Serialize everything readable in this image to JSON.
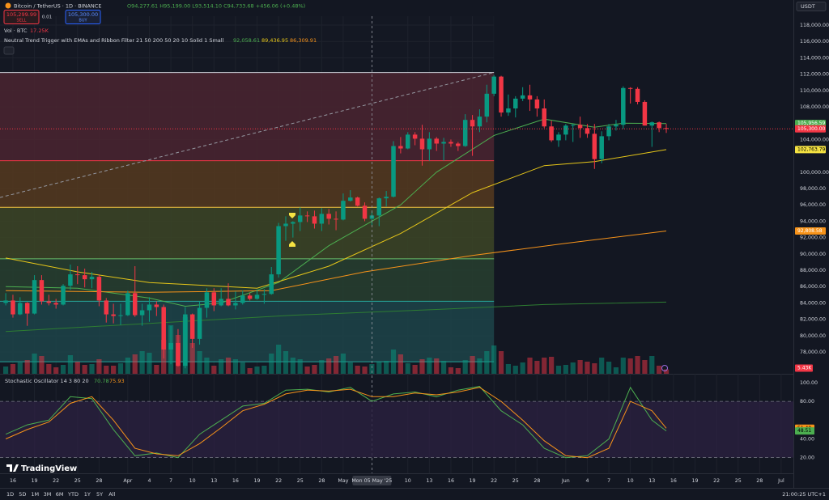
{
  "header": {
    "symbol": "Bitcoin / TetherUS · 1D · BINANCE",
    "ohlc": "O94,277.61 H95,199.00 L93,514.10 C94,733.68 +456.06 (+0.48%)",
    "sell_price": "105,299.99",
    "sell": "SELL",
    "qty": "0.01",
    "buy_price": "105,300.00",
    "buy": "BUY",
    "currency": "USDT"
  },
  "legend": {
    "volume": "Vol · BTC",
    "volume_value": "17.25K",
    "indicator": "Neutral Trend Trigger with EMAs and Ribbon Filter 21 50 200 50 20 10 Solid 1 Small",
    "indicator_values": [
      "92,058.61",
      "89,436.95",
      "86,309.91"
    ],
    "indicator_colors": [
      "#4caf50",
      "#e6c619",
      "#f7931a"
    ]
  },
  "logo": "TradingView",
  "toolbar": {
    "ranges": [
      "1D",
      "5D",
      "1M",
      "3M",
      "6M",
      "YTD",
      "1Y",
      "5Y",
      "All"
    ],
    "clock": "21:00:25 UTC+1"
  },
  "chart_data": [
    {
      "type": "candlestick",
      "up_color": "#089981",
      "down_color": "#f23645",
      "open": [
        84000,
        84300,
        82600,
        84000,
        82700,
        86800,
        84200,
        84000,
        83800,
        86100,
        87500,
        87400,
        86900,
        87200,
        84300,
        82600,
        82400,
        82500,
        85200,
        82500,
        83100,
        83800,
        83500,
        78300,
        79100,
        76300,
        82600,
        79600,
        83400,
        85300,
        83700,
        84500,
        83700,
        84000,
        84900,
        84500,
        85000,
        85100,
        87500,
        93400,
        93700,
        93900,
        94700,
        94600,
        93700,
        94900,
        94300,
        94200,
        96500,
        96900,
        95900,
        94300,
        94700,
        96800,
        97000,
        103200,
        102900,
        104600,
        104100,
        102800,
        104100,
        103500,
        103700,
        103500,
        103200,
        106400,
        105600,
        106800,
        109600,
        111700,
        107300,
        107800,
        109000,
        109400,
        108900,
        107800,
        105600,
        103900,
        104600,
        105700,
        105800,
        105400,
        104700,
        101600,
        104400,
        105600,
        105800,
        110300,
        110200,
        108600,
        105700,
        106100,
        105400
      ],
      "high": [
        85200,
        85000,
        84700,
        84100,
        87400,
        87400,
        85000,
        84500,
        86300,
        88700,
        88500,
        88200,
        87800,
        87500,
        84600,
        83900,
        83900,
        85500,
        88500,
        83900,
        84700,
        84200,
        83800,
        81200,
        80800,
        83500,
        82700,
        84200,
        85800,
        85800,
        85800,
        86400,
        85400,
        85500,
        85200,
        85600,
        85700,
        88400,
        93800,
        94600,
        94000,
        95700,
        95200,
        95300,
        95600,
        95500,
        95200,
        97400,
        97800,
        97000,
        96300,
        95200,
        96900,
        97700,
        103800,
        104300,
        104900,
        104900,
        105800,
        104900,
        104300,
        104200,
        104000,
        103700,
        107100,
        107000,
        107700,
        110700,
        111900,
        111800,
        109500,
        109300,
        110400,
        110700,
        109300,
        108900,
        106300,
        104900,
        105900,
        105900,
        106800,
        105900,
        105900,
        105000,
        105900,
        106400,
        110500,
        110400,
        110400,
        108800,
        106200,
        106200,
        105900
      ],
      "low": [
        83700,
        82200,
        82500,
        81200,
        82600,
        83800,
        83700,
        83300,
        83700,
        85600,
        86300,
        85900,
        85800,
        83600,
        81600,
        81500,
        81300,
        82400,
        82300,
        81200,
        81700,
        82400,
        77200,
        76500,
        76200,
        76000,
        78500,
        78900,
        82200,
        83000,
        83600,
        83600,
        83200,
        83800,
        84300,
        84400,
        83900,
        85000,
        87100,
        91600,
        92000,
        92800,
        93900,
        93100,
        92800,
        93600,
        92900,
        94100,
        96400,
        95800,
        94000,
        93500,
        93400,
        95800,
        96900,
        102300,
        102800,
        103300,
        100800,
        101400,
        102600,
        101400,
        103100,
        102600,
        103100,
        102000,
        104900,
        106100,
        109300,
        106800,
        106900,
        106700,
        108700,
        107500,
        106800,
        105400,
        103700,
        103100,
        103900,
        103700,
        104200,
        104200,
        100400,
        101100,
        103900,
        105100,
        105300,
        108400,
        108300,
        105700,
        103100,
        104900,
        104800
      ],
      "close": [
        84300,
        82600,
        84000,
        82700,
        86800,
        84200,
        84000,
        83800,
        86100,
        87500,
        87400,
        86900,
        87200,
        84300,
        82600,
        82400,
        82500,
        85200,
        82500,
        83100,
        83800,
        83500,
        78300,
        79100,
        76300,
        82600,
        79600,
        83400,
        85300,
        83700,
        84500,
        83700,
        84000,
        84900,
        84500,
        85000,
        85100,
        87500,
        93400,
        93700,
        93900,
        94700,
        94600,
        93700,
        94900,
        94300,
        94200,
        96500,
        96900,
        95900,
        94300,
        94700,
        96800,
        97000,
        103200,
        102900,
        104600,
        104100,
        102800,
        104100,
        103500,
        103700,
        103500,
        103200,
        106400,
        105600,
        106800,
        109600,
        111700,
        107300,
        107800,
        109000,
        109400,
        108900,
        107800,
        105600,
        103900,
        104600,
        105700,
        105800,
        105400,
        104700,
        101600,
        104400,
        105600,
        105800,
        110300,
        110200,
        108600,
        105700,
        106100,
        105400,
        105300
      ],
      "volume": [
        9,
        12,
        14,
        17,
        25,
        22,
        12,
        8,
        11,
        23,
        15,
        11,
        12,
        18,
        10,
        10,
        13,
        20,
        24,
        28,
        26,
        11,
        42,
        60,
        48,
        70,
        38,
        28,
        20,
        10,
        18,
        20,
        18,
        14,
        7,
        9,
        10,
        25,
        36,
        28,
        20,
        18,
        9,
        11,
        17,
        19,
        22,
        25,
        14,
        10,
        9,
        12,
        15,
        16,
        30,
        24,
        13,
        11,
        18,
        20,
        19,
        16,
        8,
        7,
        17,
        22,
        19,
        28,
        35,
        28,
        12,
        10,
        14,
        20,
        16,
        20,
        21,
        10,
        11,
        14,
        17,
        15,
        13,
        20,
        15,
        8,
        20,
        19,
        22,
        17,
        22,
        10,
        5.43
      ],
      "volume_label": {
        "value": 5.43,
        "label": "5.43K",
        "color": "#f23645"
      },
      "xlim": [
        -0.8,
        109.7
      ],
      "xticks": [
        {
          "value": 1,
          "label": "16"
        },
        {
          "value": 4,
          "label": "19"
        },
        {
          "value": 7,
          "label": "22"
        },
        {
          "value": 10,
          "label": "25"
        },
        {
          "value": 13,
          "label": "28"
        },
        {
          "value": 17,
          "label": "Apr"
        },
        {
          "value": 20,
          "label": "4"
        },
        {
          "value": 23,
          "label": "7"
        },
        {
          "value": 26,
          "label": "10"
        },
        {
          "value": 29,
          "label": "13"
        },
        {
          "value": 32,
          "label": "16"
        },
        {
          "value": 35,
          "label": "19"
        },
        {
          "value": 38,
          "label": "22"
        },
        {
          "value": 41,
          "label": "25"
        },
        {
          "value": 44,
          "label": "28"
        },
        {
          "value": 47,
          "label": "May"
        },
        {
          "value": 56,
          "label": "10"
        },
        {
          "value": 59,
          "label": "13"
        },
        {
          "value": 62,
          "label": "16"
        },
        {
          "value": 65,
          "label": "19"
        },
        {
          "value": 68,
          "label": "22"
        },
        {
          "value": 71,
          "label": "25"
        },
        {
          "value": 74,
          "label": "28"
        },
        {
          "value": 78,
          "label": "Jun"
        },
        {
          "value": 81,
          "label": "4"
        },
        {
          "value": 84,
          "label": "7"
        },
        {
          "value": 87,
          "label": "10"
        },
        {
          "value": 90,
          "label": "13"
        },
        {
          "value": 93,
          "label": "16"
        },
        {
          "value": 96,
          "label": "19"
        },
        {
          "value": 99,
          "label": "22"
        },
        {
          "value": 102,
          "label": "25"
        },
        {
          "value": 105,
          "label": "28"
        },
        {
          "value": 108,
          "label": "Jul"
        }
      ],
      "crosshair": {
        "x": 51,
        "label": "Mon 05 May '25"
      },
      "ylim": [
        75330,
        119090
      ],
      "yticks": [
        {
          "value": 118000,
          "label": "118,000.00"
        },
        {
          "value": 116000,
          "label": "116,000.00"
        },
        {
          "value": 114000,
          "label": "114,000.00"
        },
        {
          "value": 112000,
          "label": "112,000.00"
        },
        {
          "value": 110000,
          "label": "110,000.00"
        },
        {
          "value": 108000,
          "label": "108,000.00"
        },
        {
          "value": 104000,
          "label": "104,000.00"
        },
        {
          "value": 100000,
          "label": "100,000.00"
        },
        {
          "value": 98000,
          "label": "98,000.00"
        },
        {
          "value": 96000,
          "label": "96,000.00"
        },
        {
          "value": 94000,
          "label": "94,000.00"
        },
        {
          "value": 92000,
          "label": "92,000.00"
        },
        {
          "value": 90000,
          "label": "90,000.00"
        },
        {
          "value": 88000,
          "label": "88,000.00"
        },
        {
          "value": 86000,
          "label": "86,000.00"
        },
        {
          "value": 84000,
          "label": "84,000.00"
        },
        {
          "value": 82000,
          "label": "82,000.00"
        },
        {
          "value": 80000,
          "label": "80,000.00"
        },
        {
          "value": 78000,
          "label": "78,000.00"
        }
      ],
      "grid": true,
      "zones": {
        "end": 68,
        "levels": [
          112200,
          101400,
          95700,
          89400,
          84200,
          76800
        ],
        "colors": [
          "#4a2430",
          "#55391f",
          "#3c4526",
          "#27402f",
          "#1c4449"
        ],
        "line_colors": [
          "#d1d4dc",
          "#f23645",
          "#f5c542",
          "#66bb6a",
          "#26a69a",
          "#26a69a"
        ]
      },
      "trend_line": {
        "x": [
          -0.8,
          68
        ],
        "values": [
          96900,
          112200
        ],
        "color": "#9598a1"
      },
      "lines": [
        {
          "color": "#4caf50",
          "x": [
            0,
            10,
            20,
            25,
            30,
            38,
            45,
            55,
            60,
            68,
            75,
            82,
            86,
            92
          ],
          "values": [
            86000,
            85800,
            84600,
            83600,
            84000,
            86500,
            91000,
            96000,
            100000,
            104500,
            106500,
            105500,
            106000,
            105956.59
          ]
        },
        {
          "color": "#e6c619",
          "x": [
            0,
            10,
            20,
            35,
            45,
            55,
            65,
            75,
            82,
            92
          ],
          "values": [
            89500,
            87800,
            86500,
            85800,
            88500,
            92500,
            97500,
            100800,
            101300,
            102763.79
          ]
        },
        {
          "color": "#f7931a",
          "x": [
            0,
            20,
            37,
            50,
            65,
            78,
            92
          ],
          "values": [
            85500,
            85300,
            85500,
            87800,
            89800,
            91300,
            92808.58
          ]
        },
        {
          "color": "#2e7d32",
          "x": [
            0,
            20,
            40,
            60,
            75,
            92
          ],
          "values": [
            80500,
            81500,
            82500,
            83200,
            83800,
            84100
          ]
        }
      ],
      "price_labels": [
        {
          "value": 105956.59,
          "label": "105,956.59",
          "color": "#4caf50"
        },
        {
          "value": 105300,
          "label": "105,300.00",
          "color": "#f23645",
          "line": true
        },
        {
          "value": 102763.79,
          "label": "102,763.79",
          "color": "#f5e342"
        },
        {
          "value": 92808.58,
          "label": "92,808.58",
          "color": "#f7931a"
        }
      ]
    },
    {
      "type": "line",
      "title": "Stochastic Oscillator 14 3 80 20",
      "header_values": [
        "70.78",
        "75.93"
      ],
      "header_colors": [
        "#4caf50",
        "#f7931a"
      ],
      "ylim": [
        3.3,
        108.6
      ],
      "yticks": [
        {
          "value": 100,
          "label": "100.00"
        },
        {
          "value": 80,
          "label": "80.00"
        },
        {
          "value": 40,
          "label": "40.00"
        },
        {
          "value": 20,
          "label": "20.00"
        }
      ],
      "bands": [
        80,
        20
      ],
      "series": [
        {
          "color": "#4caf50",
          "x": [
            0,
            3,
            6,
            9,
            12,
            15,
            18,
            21,
            24,
            27,
            30,
            33,
            36,
            39,
            42,
            45,
            48,
            51,
            54,
            57,
            60,
            63,
            66,
            69,
            72,
            75,
            78,
            81,
            84,
            87,
            90,
            92
          ],
          "values": [
            45,
            55,
            60,
            85,
            83,
            50,
            22,
            25,
            20,
            45,
            60,
            75,
            78,
            92,
            93,
            90,
            95,
            80,
            88,
            90,
            85,
            92,
            96,
            70,
            55,
            30,
            20,
            22,
            40,
            95,
            60,
            48.51
          ]
        },
        {
          "color": "#f7931a",
          "x": [
            0,
            3,
            6,
            9,
            12,
            15,
            18,
            21,
            24,
            27,
            30,
            33,
            36,
            39,
            42,
            45,
            48,
            51,
            54,
            57,
            60,
            63,
            66,
            69,
            72,
            75,
            78,
            81,
            84,
            87,
            90,
            92
          ],
          "values": [
            40,
            50,
            58,
            78,
            85,
            60,
            30,
            24,
            22,
            35,
            52,
            70,
            77,
            88,
            92,
            91,
            93,
            85,
            85,
            89,
            87,
            90,
            95,
            80,
            60,
            38,
            22,
            20,
            30,
            80,
            70,
            51.4
          ]
        }
      ],
      "value_labels": [
        {
          "value": 51.4,
          "label": "51.40",
          "color": "#f7931a"
        },
        {
          "value": 48.51,
          "label": "48.51",
          "color": "#4caf50"
        }
      ]
    }
  ]
}
